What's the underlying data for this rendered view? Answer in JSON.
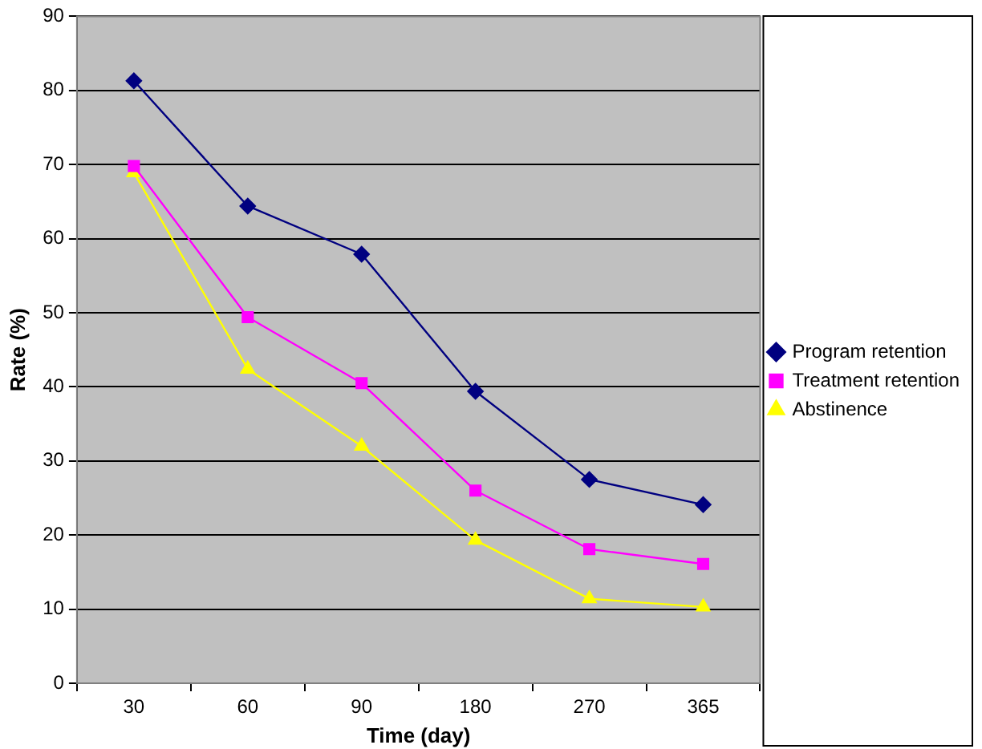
{
  "chart_data": {
    "type": "line",
    "xlabel": "Time (day)",
    "ylabel": "Rate (%)",
    "categories": [
      "30",
      "60",
      "90",
      "180",
      "270",
      "365"
    ],
    "series": [
      {
        "name": "Program retention",
        "color": "#000080",
        "marker": "diamond",
        "values": [
          81.3,
          64.4,
          57.9,
          39.4,
          27.5,
          24.1
        ]
      },
      {
        "name": "Treatment retention",
        "color": "#ff00ff",
        "marker": "square",
        "values": [
          69.8,
          49.4,
          40.5,
          26,
          18.1,
          16.1
        ]
      },
      {
        "name": "Abstinence",
        "color": "#ffff00",
        "marker": "triangle",
        "values": [
          68.9,
          42.4,
          32,
          19.3,
          11.4,
          10.3
        ]
      }
    ],
    "ylim": [
      0,
      90
    ],
    "yticks": [
      0,
      10,
      20,
      30,
      40,
      50,
      60,
      70,
      80,
      90
    ],
    "grid": "y",
    "legend": "right",
    "line_style": "solid"
  }
}
